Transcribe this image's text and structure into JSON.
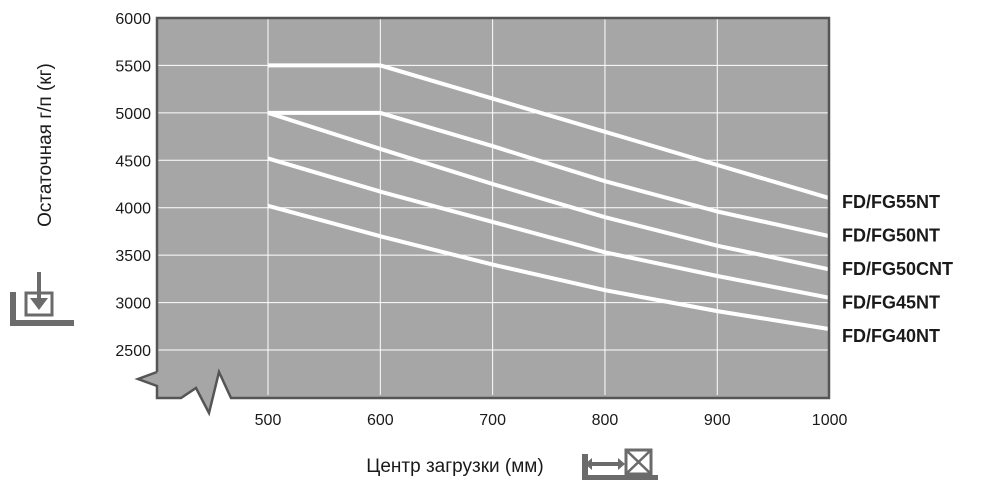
{
  "colors": {
    "plot_background": "#a6a6a6",
    "frame": "#555555",
    "grid": "#ffffff",
    "lines": "#ffffff",
    "text": "#1a1a1a",
    "icon": "#6b6b6b"
  },
  "icons": {
    "y_axis": "load-weight-icon",
    "x_axis": "load-center-icon"
  },
  "chart_data": {
    "type": "line",
    "title": "",
    "xlabel": "Центр загрузки (мм)",
    "ylabel": "Остаточная г/п (кг)",
    "xlim": [
      500,
      1000
    ],
    "ylim": [
      2500,
      6000
    ],
    "x_ticks": [
      500,
      600,
      700,
      800,
      900,
      1000
    ],
    "y_ticks": [
      2500,
      3000,
      3500,
      4000,
      4500,
      5000,
      5500,
      6000
    ],
    "grid": true,
    "axis_break": true,
    "legend": "right, labels at line ends",
    "series": [
      {
        "name": "FD/FG55NT",
        "x": [
          500,
          600,
          700,
          800,
          900,
          1000
        ],
        "y": [
          5500,
          5500,
          5150,
          4800,
          4450,
          4100
        ]
      },
      {
        "name": "FD/FG50NT",
        "x": [
          500,
          600,
          700,
          800,
          900,
          1000
        ],
        "y": [
          5000,
          5000,
          4650,
          4280,
          3960,
          3700
        ]
      },
      {
        "name": "FD/FG50CNT",
        "x": [
          500,
          600,
          700,
          800,
          900,
          1000
        ],
        "y": [
          5000,
          4620,
          4250,
          3900,
          3600,
          3350
        ]
      },
      {
        "name": "FD/FG45NT",
        "x": [
          500,
          600,
          700,
          800,
          900,
          1000
        ],
        "y": [
          4520,
          4170,
          3850,
          3530,
          3280,
          3050
        ]
      },
      {
        "name": "FD/FG40NT",
        "x": [
          500,
          600,
          700,
          800,
          900,
          1000
        ],
        "y": [
          4020,
          3700,
          3400,
          3130,
          2910,
          2720
        ]
      }
    ]
  }
}
